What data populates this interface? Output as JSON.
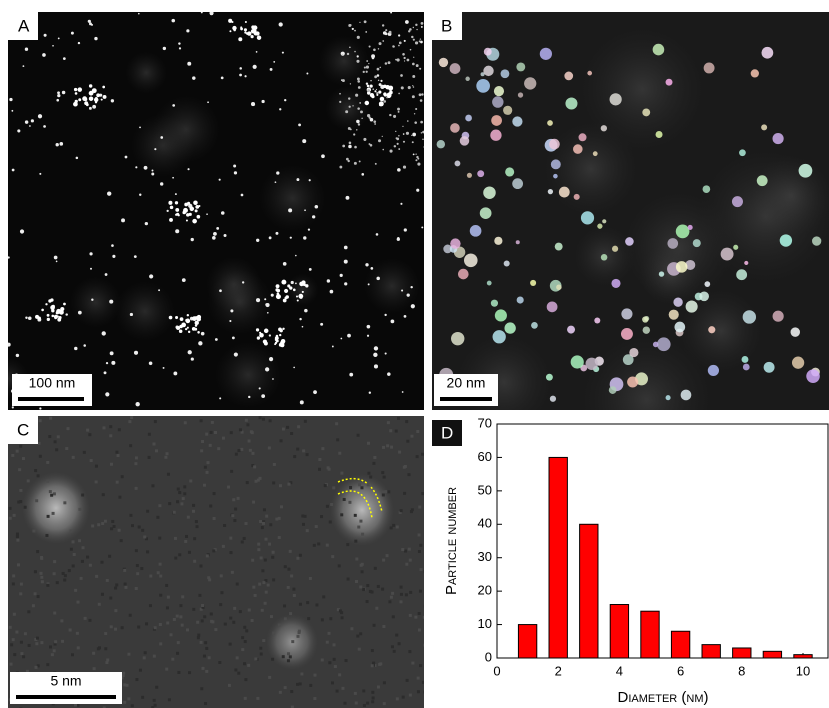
{
  "panels": [
    {
      "label": "A",
      "scale_bar": "100 nm"
    },
    {
      "label": "B",
      "scale_bar": "20 nm"
    },
    {
      "label": "C",
      "scale_bar": "5 nm"
    },
    {
      "label": "D"
    }
  ],
  "chart_data": {
    "type": "bar",
    "x": [
      1,
      2,
      3,
      4,
      5,
      6,
      7,
      8,
      9,
      10
    ],
    "values": [
      10,
      60,
      40,
      16,
      14,
      8,
      4,
      3,
      2,
      1
    ],
    "color": "#ff0000",
    "xlabel": "Diameter (nm)",
    "ylabel": "Particle number",
    "xlim": [
      0,
      10.85
    ],
    "xticks": [
      0,
      2,
      4,
      6,
      8,
      10
    ],
    "ylim": [
      0,
      70
    ],
    "yticks": [
      0,
      10,
      20,
      30,
      40,
      50,
      60,
      70
    ]
  }
}
